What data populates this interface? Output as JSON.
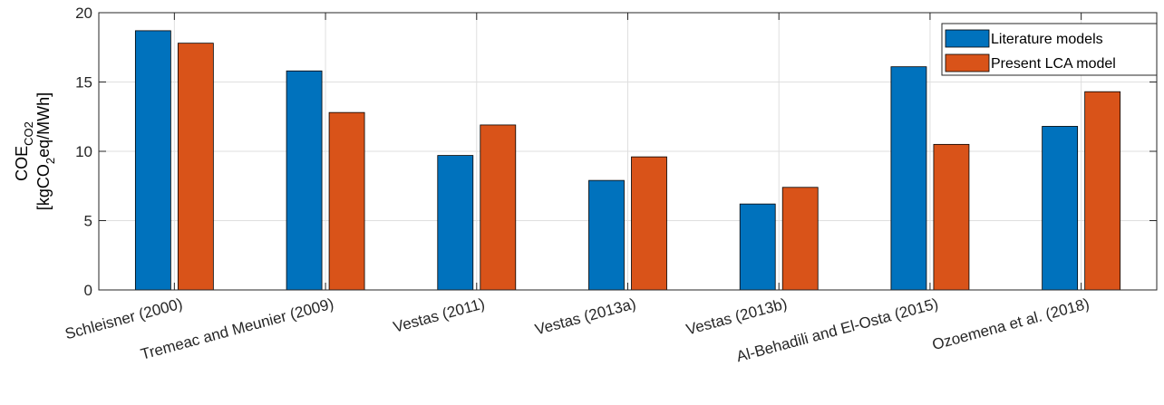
{
  "chart_data": {
    "type": "bar",
    "categories": [
      "Schleisner (2000)",
      "Tremeac and Meunier (2009)",
      "Vestas (2011)",
      "Vestas (2013a)",
      "Vestas (2013b)",
      "Al-Behadili and El-Osta (2015)",
      "Ozoemena et al. (2018)"
    ],
    "series": [
      {
        "name": "Literature models",
        "color": "#0072BD",
        "values": [
          18.7,
          15.8,
          9.7,
          7.9,
          6.2,
          16.1,
          11.8
        ]
      },
      {
        "name": "Present LCA model",
        "color": "#D95319",
        "values": [
          17.8,
          12.8,
          11.9,
          9.6,
          7.4,
          10.5,
          14.3
        ]
      }
    ],
    "ylim": [
      0,
      20
    ],
    "yticks": [
      0,
      5,
      10,
      15,
      20
    ],
    "ylabel": {
      "line1_main": "COE",
      "line1_sub": "CO2",
      "line2_pre": "[kgCO",
      "line2_sub": "2",
      "line2_post": "eq/MWh]"
    },
    "grid": true,
    "legend_position": "top-right"
  }
}
